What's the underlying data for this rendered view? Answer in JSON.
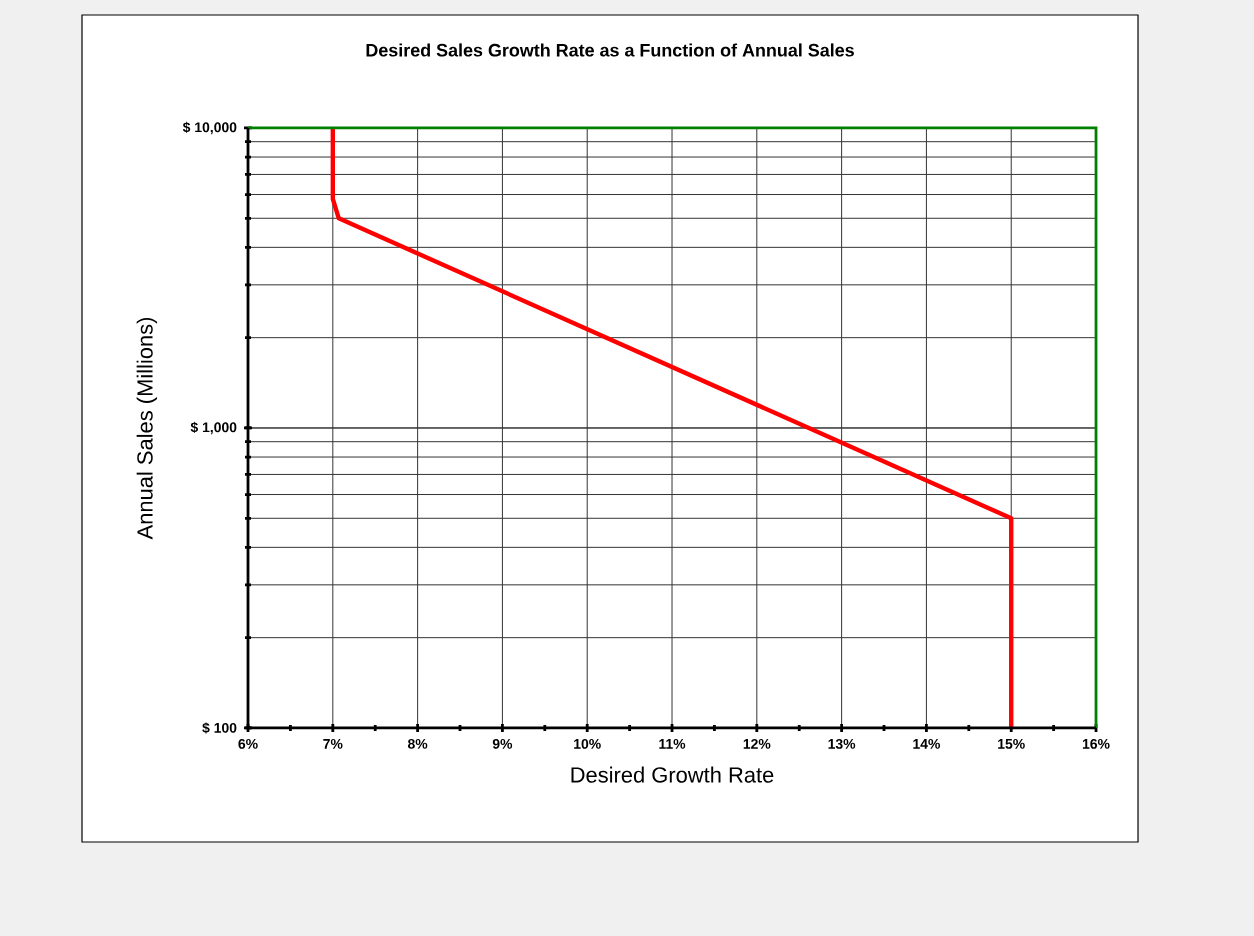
{
  "chart_data": {
    "type": "line",
    "title": "Desired Sales Growth Rate as a Function of Annual Sales",
    "xlabel": "Desired Growth Rate",
    "ylabel": "Annual Sales (Millions)",
    "x": [
      7,
      7,
      7.07,
      15,
      15
    ],
    "series": [
      {
        "color": "#ff0000",
        "values": [
          10000,
          5800,
          5000,
          500,
          100
        ]
      }
    ],
    "xlim": [
      6,
      16
    ],
    "xticks": [
      {
        "value": 6,
        "label": "6%"
      },
      {
        "value": 7,
        "label": "7%"
      },
      {
        "value": 8,
        "label": "8%"
      },
      {
        "value": 9,
        "label": "9%"
      },
      {
        "value": 10,
        "label": "10%"
      },
      {
        "value": 11,
        "label": "11%"
      },
      {
        "value": 12,
        "label": "12%"
      },
      {
        "value": 13,
        "label": "13%"
      },
      {
        "value": 14,
        "label": "14%"
      },
      {
        "value": 15,
        "label": "15%"
      },
      {
        "value": 16,
        "label": "16%"
      }
    ],
    "ylim": [
      100,
      10000
    ],
    "yticks": [
      {
        "value": 100,
        "label": "$ 100"
      },
      {
        "value": 1000,
        "label": "$ 1,000"
      },
      {
        "value": 10000,
        "label": "$ 10,000"
      }
    ],
    "log": "y",
    "grid": true,
    "marker": "none",
    "line_style": "solid"
  }
}
